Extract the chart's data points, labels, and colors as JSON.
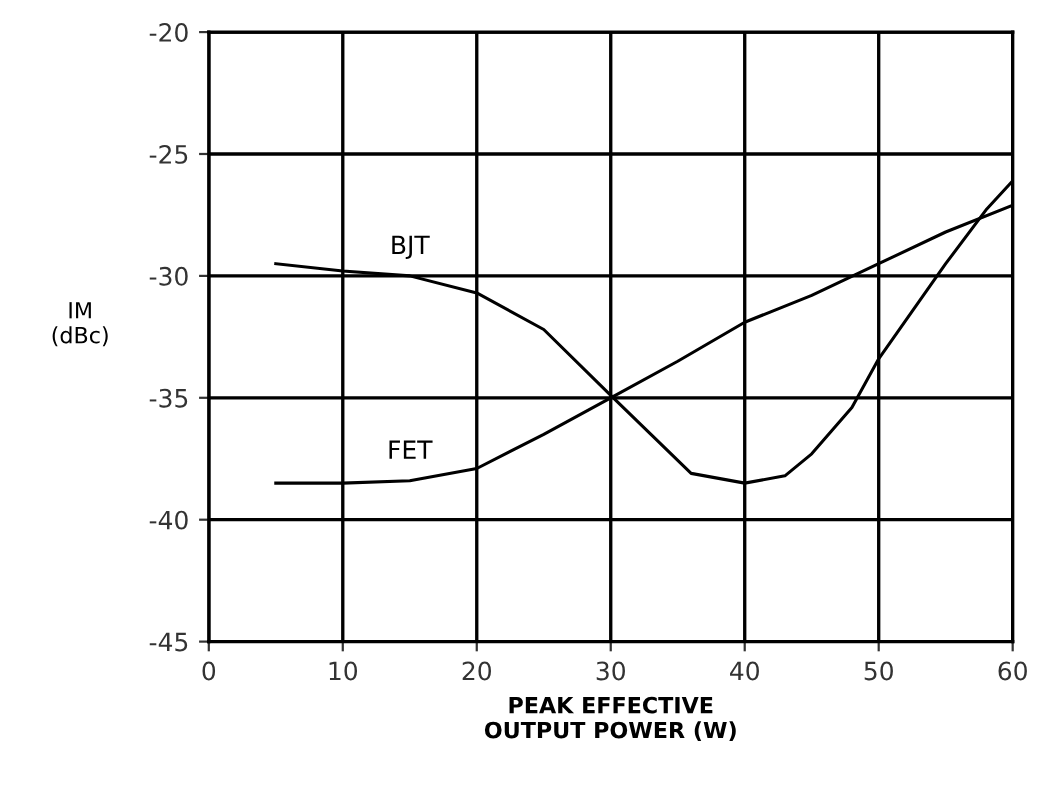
{
  "chart_data": {
    "type": "line",
    "xlabel": "PEAK EFFECTIVE\nOUTPUT POWER (W)",
    "ylabel": "IM\n(dBc)",
    "xlim": [
      0,
      60
    ],
    "xticks": [
      0,
      10,
      20,
      30,
      40,
      50,
      60
    ],
    "ylim": [
      -45,
      -20
    ],
    "yticks": [
      -45,
      -40,
      -35,
      -30,
      -25,
      -20
    ],
    "grid": true,
    "legend": false,
    "series": [
      {
        "name": "BJT",
        "color": "#000000",
        "x": [
          5,
          10,
          15,
          20,
          25,
          30,
          33,
          36,
          40,
          43,
          45,
          48,
          50,
          55,
          58,
          60
        ],
        "values": [
          -29.5,
          -29.8,
          -30.0,
          -30.7,
          -32.2,
          -34.9,
          -36.5,
          -38.1,
          -38.5,
          -38.2,
          -37.3,
          -35.4,
          -33.4,
          -29.5,
          -27.3,
          -26.1
        ]
      },
      {
        "name": "FET",
        "color": "#000000",
        "x": [
          5,
          10,
          15,
          20,
          25,
          30,
          35,
          40,
          45,
          50,
          55,
          60
        ],
        "values": [
          -38.5,
          -38.5,
          -38.4,
          -37.9,
          -36.5,
          -35.0,
          -33.5,
          -31.9,
          -30.8,
          -29.5,
          -28.2,
          -27.1
        ]
      }
    ]
  }
}
